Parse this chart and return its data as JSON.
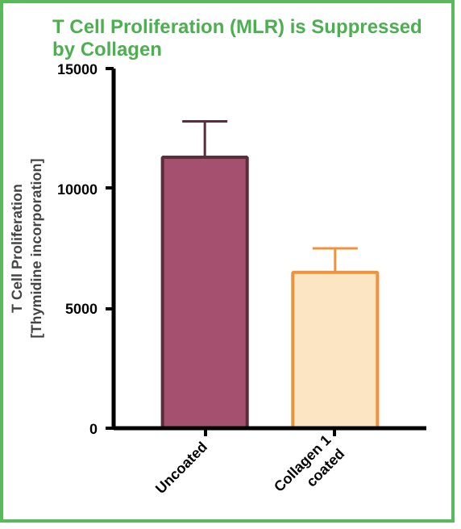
{
  "chart_data": {
    "type": "bar",
    "title": "T Cell Proliferation (MLR) is Suppressed\nby Collagen",
    "ylabel": "T Cell Proliferation\n[Thymidine incorporation]",
    "categories": [
      "Uncoated",
      "Collagen 1\ncoated"
    ],
    "values": [
      11300,
      6500
    ],
    "errors": [
      1500,
      1000
    ],
    "colors": [
      "#a5506e",
      "#fce5c3"
    ],
    "ylim": [
      0,
      15000
    ],
    "yticks": [
      0,
      5000,
      10000,
      15000
    ],
    "grid": false
  }
}
